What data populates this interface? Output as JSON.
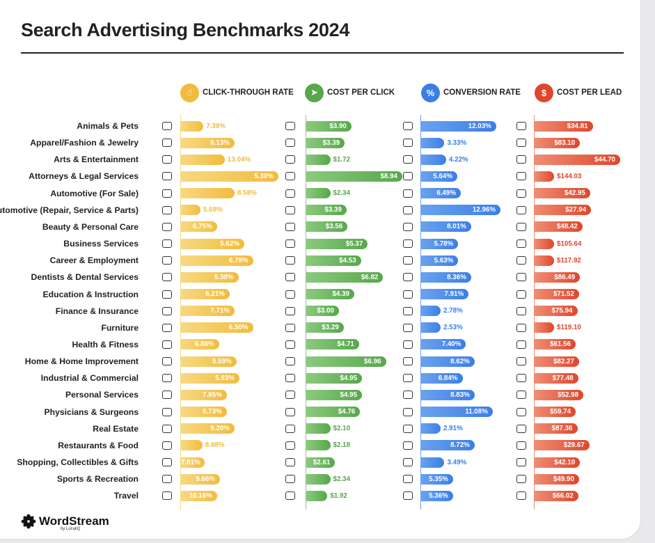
{
  "title": "Search Advertising Benchmarks 2024",
  "brand": {
    "name": "WordStream",
    "sub": "by LocaliQ"
  },
  "columns": [
    {
      "name": "CLICK-THROUGH RATE",
      "icon": "hand-click-icon",
      "color": "#f2bb3d",
      "light": "#f7d981"
    },
    {
      "name": "COST PER CLICK",
      "icon": "cursor-click-icon",
      "color": "#56a84a",
      "light": "#8cc97f"
    },
    {
      "name": "CONVERSION RATE",
      "icon": "percent-icon",
      "color": "#3b7ee6",
      "light": "#6aa2ef"
    },
    {
      "name": "COST PER LEAD",
      "icon": "dollar-icon",
      "color": "#e0462b",
      "light": "#ee8d74"
    }
  ],
  "chart_data": {
    "type": "bar",
    "title": "Search Advertising Benchmarks 2024",
    "categories": [
      "Animals & Pets",
      "Apparel/Fashion & Jewelry",
      "Arts & Entertainment",
      "Attorneys & Legal Services",
      "Automotive (For Sale)",
      "Automotive (Repair, Service & Parts)",
      "Beauty & Personal Care",
      "Business Services",
      "Career & Employment",
      "Dentists & Dental Services",
      "Education & Instruction",
      "Finance & Insurance",
      "Furniture",
      "Health & Fitness",
      "Home & Home Improvement",
      "Industrial & Commercial",
      "Personal Services",
      "Physicians & Surgeons",
      "Real Estate",
      "Restaurants & Food",
      "Shopping, Collectibles & Gifts",
      "Sports & Recreation",
      "Travel"
    ],
    "icons": [
      "paw-icon",
      "shirt-icon",
      "picture-icon",
      "gavel-icon",
      "car-tag-icon",
      "car-icon",
      "comb-icon",
      "newspaper-icon",
      "briefcase-icon",
      "tooth-icon",
      "graduation-cap-icon",
      "piggy-bank-icon",
      "armchair-icon",
      "heart-icon",
      "house-icon",
      "factory-icon",
      "hairdryer-icon",
      "medical-cross-icon",
      "storefront-icon",
      "fork-knife-icon",
      "gift-bow-icon",
      "ball-icon",
      "airplane-icon"
    ],
    "series": [
      {
        "name": "CLICK-THROUGH RATE",
        "values": [
          7.39,
          6.13,
          13.04,
          5.3,
          8.58,
          5.69,
          6.75,
          5.62,
          6.79,
          5.38,
          6.21,
          7.71,
          6.5,
          6.88,
          5.59,
          5.83,
          7.95,
          6.73,
          9.2,
          8.68,
          7.81,
          9.66,
          10.16
        ],
        "labels": [
          "7.39%",
          "6.13%",
          "13.04%",
          "5.30%",
          "8.58%",
          "5.69%",
          "6.75%",
          "5.62%",
          "6.79%",
          "5.38%",
          "6.21%",
          "7.71%",
          "6.50%",
          "6.88%",
          "5.59%",
          "5.83%",
          "7.95%",
          "6.73%",
          "9.20%",
          "8.68%",
          "7.81%",
          "9.66%",
          "10.16%"
        ]
      },
      {
        "name": "COST PER CLICK",
        "values": [
          3.9,
          3.39,
          1.72,
          8.94,
          2.34,
          3.39,
          3.56,
          5.37,
          4.53,
          6.82,
          4.39,
          3.0,
          3.29,
          4.71,
          6.96,
          4.95,
          4.95,
          4.76,
          2.1,
          2.18,
          2.61,
          2.34,
          1.92
        ],
        "labels": [
          "$3.90",
          "$3.39",
          "$1.72",
          "$8.94",
          "$2.34",
          "$3.39",
          "$3.56",
          "$5.37",
          "$4.53",
          "$6.82",
          "$4.39",
          "$3.00",
          "$3.29",
          "$4.71",
          "$6.96",
          "$4.95",
          "$4.95",
          "$4.76",
          "$2.10",
          "$2.18",
          "$2.61",
          "$2.34",
          "$1.92"
        ]
      },
      {
        "name": "CONVERSION RATE",
        "values": [
          12.03,
          3.33,
          4.22,
          5.64,
          6.49,
          12.96,
          8.01,
          5.78,
          5.63,
          8.36,
          7.91,
          2.78,
          2.53,
          7.4,
          8.62,
          6.84,
          8.83,
          11.08,
          2.91,
          8.72,
          3.49,
          5.35,
          5.36
        ],
        "labels": [
          "12.03%",
          "3.33%",
          "4.22%",
          "5.64%",
          "6.49%",
          "12.96%",
          "8.01%",
          "5.78%",
          "5.63%",
          "8.36%",
          "7.91%",
          "2.78%",
          "2.53%",
          "7.40%",
          "8.62%",
          "6.84%",
          "8.83%",
          "11.08%",
          "2.91%",
          "8.72%",
          "3.49%",
          "5.35%",
          "5.36%"
        ]
      },
      {
        "name": "COST PER LEAD",
        "values": [
          34.81,
          83.1,
          44.7,
          144.03,
          42.95,
          27.94,
          48.42,
          105.64,
          117.92,
          86.49,
          71.52,
          75.94,
          119.1,
          61.56,
          82.27,
          77.48,
          52.98,
          59.74,
          87.36,
          29.67,
          42.1,
          49.9,
          66.02
        ],
        "labels": [
          "$34.81",
          "$83.10",
          "$44.70",
          "$144.03",
          "$42.95",
          "$27.94",
          "$48.42",
          "$105.64",
          "$117.92",
          "$86.49",
          "$71.52",
          "$75.94",
          "$119.10",
          "$61.56",
          "$82.27",
          "$77.48",
          "$52.98",
          "$59.74",
          "$87.36",
          "$29.67",
          "$42.10",
          "$49.90",
          "$66.02"
        ]
      }
    ],
    "visual_lengths": [
      [
        0.23,
        0.55,
        0.45,
        1.0,
        0.55,
        0.2,
        0.37,
        0.65,
        0.74,
        0.59,
        0.5,
        0.55,
        0.74,
        0.39,
        0.57,
        0.6,
        0.47,
        0.47,
        0.55,
        0.22,
        0.24,
        0.4,
        0.37
      ],
      [
        0.47,
        0.4,
        0.25,
        1.0,
        0.25,
        0.42,
        0.43,
        0.64,
        0.57,
        0.8,
        0.5,
        0.34,
        0.39,
        0.55,
        0.83,
        0.58,
        0.58,
        0.56,
        0.25,
        0.25,
        0.3,
        0.25,
        0.22
      ],
      [
        0.87,
        0.27,
        0.29,
        0.42,
        0.46,
        0.92,
        0.58,
        0.43,
        0.43,
        0.58,
        0.55,
        0.2,
        0.2,
        0.52,
        0.62,
        0.48,
        0.62,
        0.83,
        0.2,
        0.62,
        0.27,
        0.37,
        0.37
      ],
      [
        0.68,
        0.53,
        1.0,
        0.07,
        0.65,
        0.66,
        0.56,
        0.11,
        0.1,
        0.53,
        0.52,
        0.5,
        0.08,
        0.48,
        0.52,
        0.51,
        0.57,
        0.48,
        0.5,
        0.64,
        0.53,
        0.52,
        0.51
      ]
    ],
    "label_inside": [
      [
        false,
        true,
        false,
        true,
        false,
        false,
        true,
        true,
        true,
        true,
        true,
        true,
        true,
        true,
        true,
        true,
        true,
        true,
        true,
        false,
        true,
        true,
        true
      ],
      [
        true,
        true,
        false,
        true,
        false,
        true,
        true,
        true,
        true,
        true,
        true,
        true,
        true,
        true,
        true,
        true,
        true,
        true,
        false,
        false,
        true,
        false,
        false
      ],
      [
        true,
        false,
        false,
        true,
        true,
        true,
        true,
        true,
        true,
        true,
        true,
        false,
        false,
        true,
        true,
        true,
        true,
        true,
        false,
        true,
        false,
        true,
        true
      ],
      [
        true,
        true,
        true,
        false,
        true,
        true,
        true,
        false,
        false,
        true,
        true,
        true,
        false,
        true,
        true,
        true,
        true,
        true,
        true,
        true,
        true,
        true,
        true
      ]
    ]
  }
}
